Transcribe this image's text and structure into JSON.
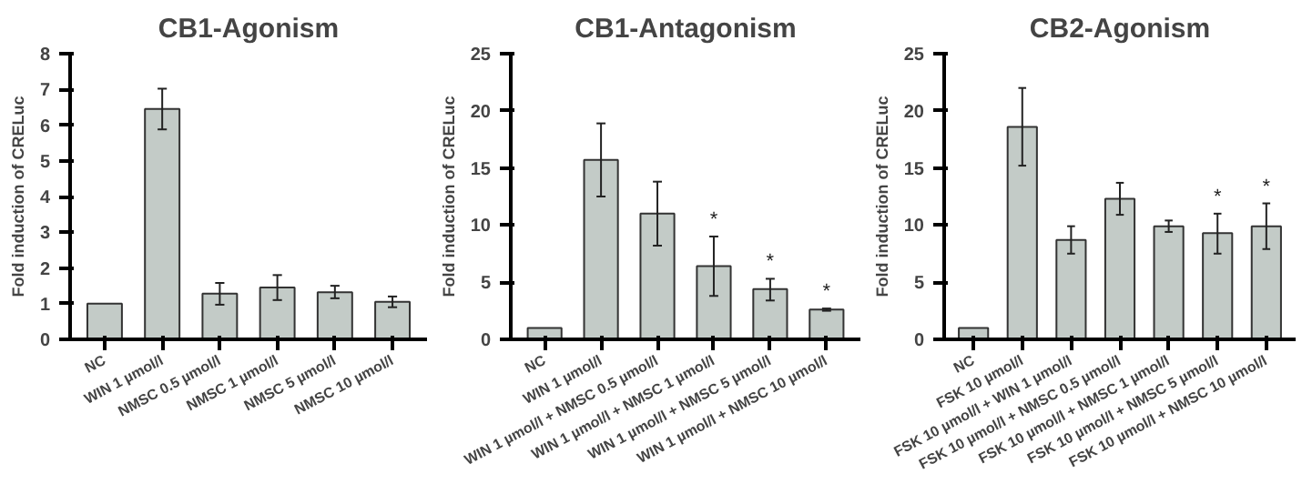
{
  "chart_data": [
    {
      "type": "bar",
      "title": "CB1-Agonism",
      "ylabel": "Fold induction of CRELuc",
      "categories": [
        "NC",
        "WIN 1 µmol/l",
        "NMSC 0.5 µmol/l",
        "NMSC 1 µmol/l",
        "NMSC 5 µmol/l",
        "NMSC 10 µmol/l"
      ],
      "values": [
        1,
        6.45,
        1.28,
        1.45,
        1.32,
        1.05
      ],
      "errors": [
        null,
        [
          5.88,
          7.02
        ],
        [
          0.97,
          1.58
        ],
        [
          1.1,
          1.8
        ],
        [
          1.15,
          1.5
        ],
        [
          0.9,
          1.2
        ]
      ],
      "color": "#c3cbc7",
      "ylim": [
        0,
        8
      ],
      "yticks": [
        0,
        1,
        2,
        3,
        4,
        5,
        6,
        7,
        8
      ],
      "grid": false,
      "legend": false
    },
    {
      "type": "bar",
      "title": "CB1-Antagonism",
      "ylabel": "Fold induction of CRELuc",
      "categories": [
        "NC",
        "WIN 1 µmol/l",
        "WIN 1 µmol/l + NMSC 0.5 µmol/l",
        "WIN 1 µmol/l + NMSC 1 µmol/l",
        "WIN 1 µmol/l + NMSC 5 µmol/l",
        "WIN 1 µmol/l + NMSC 10 µmol/l"
      ],
      "values": [
        1,
        15.7,
        11.0,
        6.4,
        4.4,
        2.6
      ],
      "errors": [
        null,
        [
          12.5,
          18.9
        ],
        [
          8.2,
          13.8
        ],
        [
          3.8,
          9.0
        ],
        [
          3.4,
          5.3
        ],
        [
          2.5,
          2.7
        ]
      ],
      "color": "#c3cbc7",
      "ylim": [
        0,
        25
      ],
      "yticks": [
        0,
        5,
        10,
        15,
        20,
        25
      ],
      "grid": false,
      "legend": false,
      "annotations": [
        {
          "text": "*",
          "x": "WIN 1 µmol/l + NMSC 1 µmol/l",
          "y": 9.0
        },
        {
          "text": "*",
          "x": "WIN 1 µmol/l + NMSC 5 µmol/l",
          "y": 5.3
        },
        {
          "text": "*",
          "x": "WIN 1 µmol/l + NMSC 10 µmol/l",
          "y": 2.7
        }
      ]
    },
    {
      "type": "bar",
      "title": "CB2-Agonism",
      "ylabel": "Fold induction of CRELuc",
      "categories": [
        "NC",
        "FSK 10 µmol/l",
        "FSK 10 µmol/l + WIN 1 µmol/l",
        "FSK 10 µmol/l + NMSC 0.5 µmol/l",
        "FSK 10 µmol/l + NMSC 1 µmol/l",
        "FSK 10 µmol/l + NMSC 5 µmol/l",
        "FSK 10 µmol/l + NMSC 10 µmol/l"
      ],
      "values": [
        1,
        18.6,
        8.7,
        12.3,
        9.9,
        9.3,
        9.9
      ],
      "errors": [
        null,
        [
          15.2,
          22.0
        ],
        [
          7.5,
          9.9
        ],
        [
          10.9,
          13.7
        ],
        [
          9.4,
          10.4
        ],
        [
          7.5,
          11.0
        ],
        [
          7.9,
          11.9
        ]
      ],
      "color": "#c3cbc7",
      "ylim": [
        0,
        25
      ],
      "yticks": [
        0,
        5,
        10,
        15,
        20,
        25
      ],
      "grid": false,
      "legend": false,
      "annotations": [
        {
          "text": "*",
          "x": "FSK 10 µmol/l + NMSC 5 µmol/l",
          "y": 11.0
        },
        {
          "text": "*",
          "x": "FSK 10 µmol/l + NMSC 10 µmol/l",
          "y": 11.9
        }
      ]
    }
  ]
}
